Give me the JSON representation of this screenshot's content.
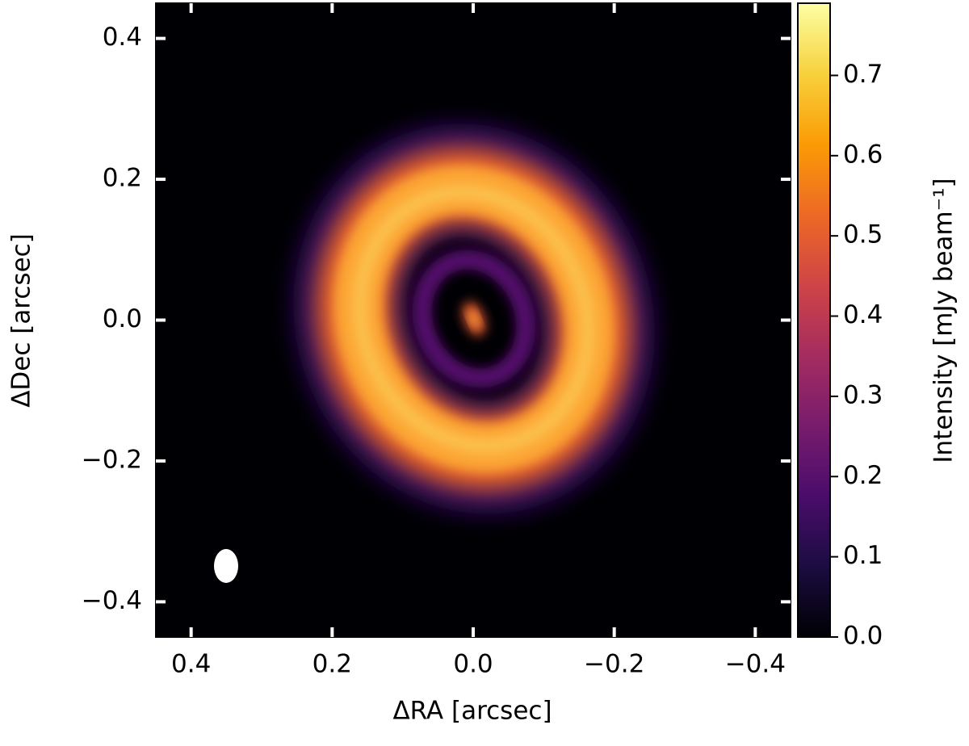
{
  "chart_data": {
    "type": "image",
    "xlabel": "ΔRA  [arcsec]",
    "ylabel": "ΔDec  [arcsec]",
    "xlim": [
      0.45,
      -0.45
    ],
    "ylim": [
      -0.45,
      0.45
    ],
    "xticks": [
      0.4,
      0.2,
      {
        "value": 0,
        "label": "0.0"
      },
      {
        "value": -0.2,
        "label": "−0.2"
      },
      {
        "value": -0.4,
        "label": "−0.4"
      }
    ],
    "yticks": [
      {
        "value": -0.4,
        "label": "−0.4"
      },
      {
        "value": -0.2,
        "label": "−0.2"
      },
      {
        "value": 0,
        "label": "0.0"
      },
      0.2,
      0.4
    ],
    "colorbar": {
      "label": "Intensity [mJy beam⁻¹]",
      "colormap": "inferno",
      "lim": [
        0,
        0.79
      ],
      "ticks": [
        {
          "value": 0,
          "label": "0.0"
        },
        0.1,
        0.2,
        0.3,
        0.4,
        0.5,
        0.6,
        0.7
      ]
    }
  }
}
